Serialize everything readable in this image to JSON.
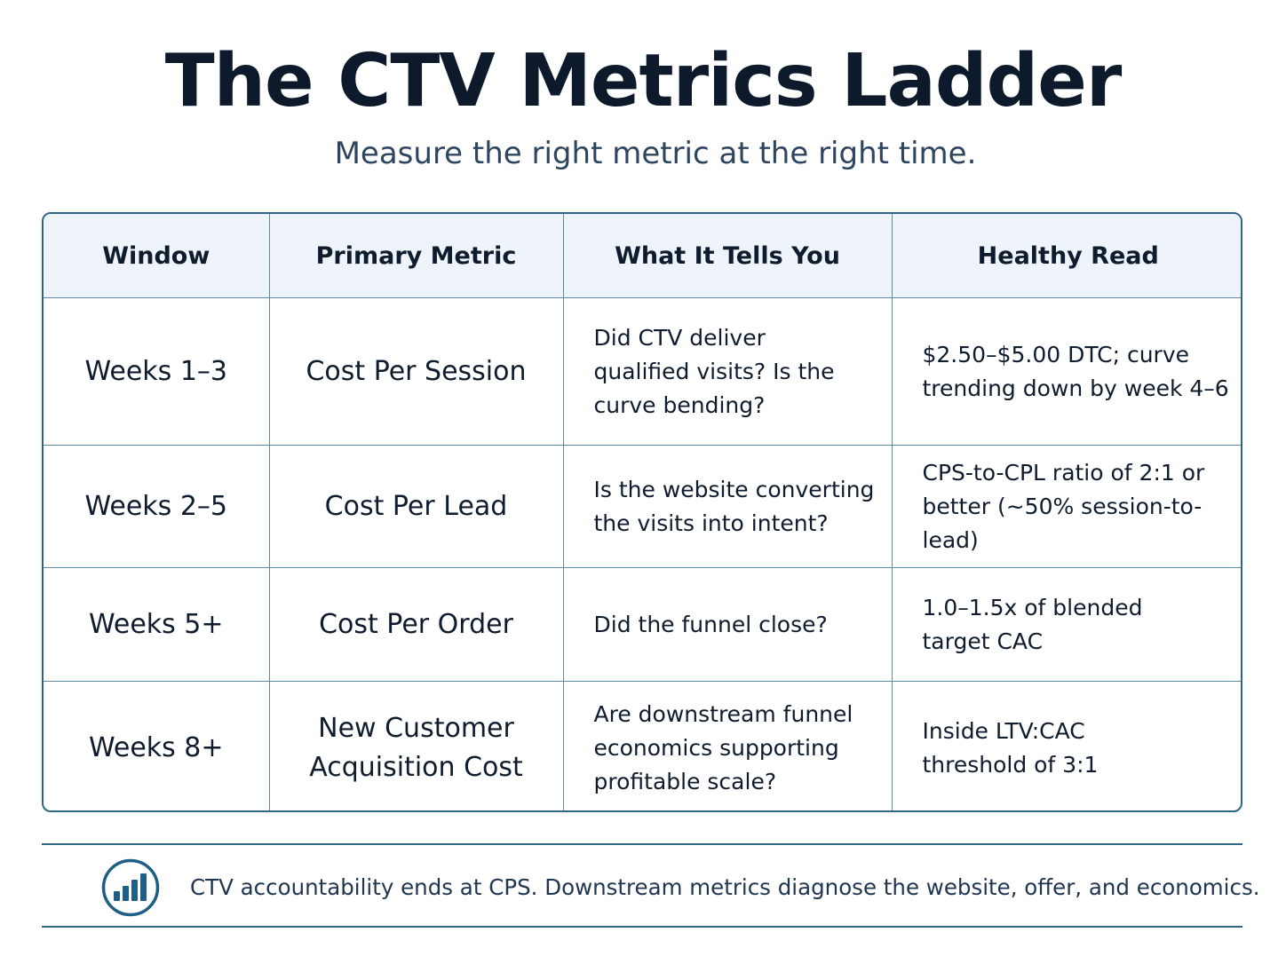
{
  "title": "The CTV Metrics Ladder",
  "subtitle": "Measure the right metric at the right time.",
  "table": {
    "headers": [
      "Window",
      "Primary Metric",
      "What It Tells You",
      "Healthy Read"
    ],
    "rows": [
      {
        "window": "Weeks 1–3",
        "metric": [
          "Cost Per Session"
        ],
        "tells": [
          "Did CTV deliver",
          "qualified visits? Is the",
          "curve bending?"
        ],
        "read": [
          "$2.50–$5.00 DTC; curve",
          "trending down by week 4–6"
        ]
      },
      {
        "window": "Weeks 2–5",
        "metric": [
          "Cost Per Lead"
        ],
        "tells": [
          "Is the website converting",
          "the visits into intent?"
        ],
        "read": [
          "CPS-to-CPL ratio of 2:1 or",
          "better (~50% session-to-lead)"
        ]
      },
      {
        "window": "Weeks 5+",
        "metric": [
          "Cost Per Order"
        ],
        "tells": [
          "Did the funnel close?"
        ],
        "read": [
          "1.0–1.5x of blended",
          "target CAC"
        ]
      },
      {
        "window": "Weeks 8+",
        "metric": [
          "New Customer",
          "Acquisition Cost"
        ],
        "tells": [
          "Are downstream funnel",
          "economics supporting",
          "profitable scale?"
        ],
        "read": [
          "Inside LTV:CAC",
          "threshold of 3:1"
        ]
      }
    ]
  },
  "footer": {
    "icon": "bar-chart-icon",
    "note": "CTV accountability ends at CPS. Downstream metrics diagnose the website, offer, and economics."
  },
  "colors": {
    "navy": "#0d1a2b",
    "accent": "#1f5f86",
    "header_bg": "#eef4f9",
    "grid": "#5f8aa3"
  }
}
